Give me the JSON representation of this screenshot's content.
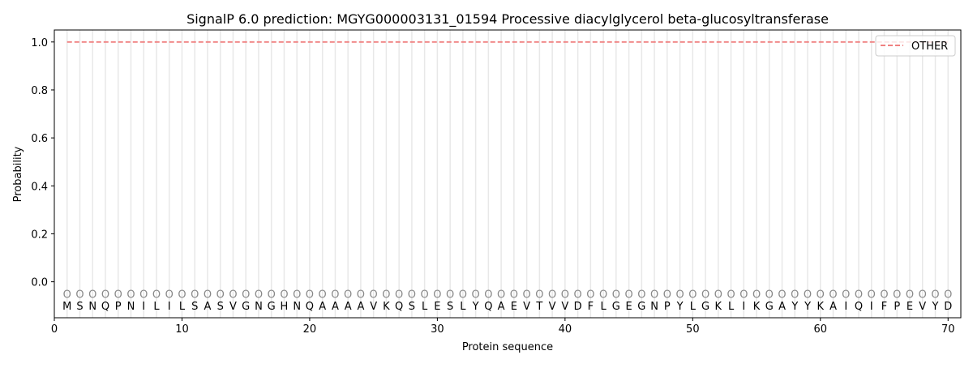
{
  "chart_data": {
    "type": "line",
    "title": "SignalP 6.0 prediction: MGYG000003131_01594 Processive diacylglycerol beta-glucosyltransferase",
    "xlabel": "Protein sequence",
    "ylabel": "Probability",
    "xlim": [
      0,
      71
    ],
    "ylim": [
      -0.15,
      1.05
    ],
    "xticks": [
      0,
      10,
      20,
      30,
      40,
      50,
      60,
      70
    ],
    "yticks": [
      "0.0",
      "0.2",
      "0.4",
      "0.6",
      "0.8",
      "1.0"
    ],
    "grid": "vertical lines at each residue",
    "legend_position": "top-right",
    "sequence": [
      "M",
      "S",
      "N",
      "Q",
      "P",
      "N",
      "I",
      "L",
      "I",
      "L",
      "S",
      "A",
      "S",
      "V",
      "G",
      "N",
      "G",
      "H",
      "N",
      "Q",
      "A",
      "A",
      "A",
      "A",
      "V",
      "K",
      "Q",
      "S",
      "L",
      "E",
      "S",
      "L",
      "Y",
      "Q",
      "A",
      "E",
      "V",
      "T",
      "V",
      "V",
      "D",
      "F",
      "L",
      "G",
      "E",
      "G",
      "N",
      "P",
      "Y",
      "L",
      "G",
      "K",
      "L",
      "I",
      "K",
      "G",
      "A",
      "Y",
      "Y",
      "K",
      "A",
      "I",
      "Q",
      "I",
      "F",
      "P",
      "E",
      "V",
      "Y",
      "D"
    ],
    "region_label": "O",
    "series": [
      {
        "name": "OTHER",
        "color": "#f08080",
        "style": "dashed",
        "x_start": 1,
        "x_end": 70,
        "value": 1.0
      }
    ]
  }
}
